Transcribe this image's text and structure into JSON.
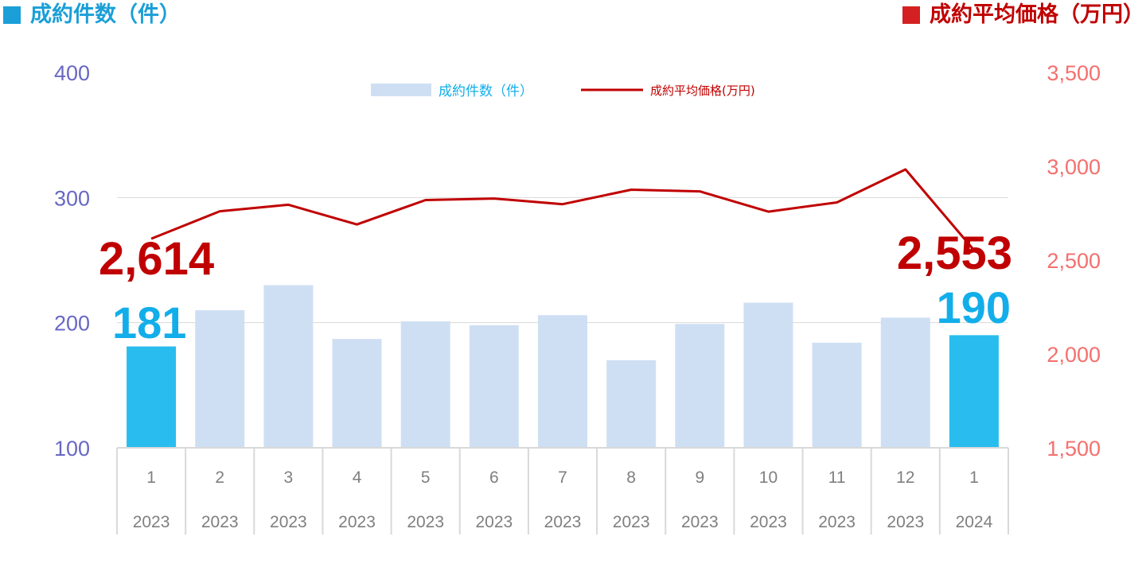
{
  "header": {
    "left_title": "成約件数（件）",
    "right_title": "成約平均価格（万円）"
  },
  "colors": {
    "bar": "#cfdff3",
    "bar_highlight": "#29bdef",
    "line": "#c00000",
    "left_axis_text": "#6868c4",
    "right_axis_text": "#f4706e",
    "left_header": "#1a9fd8",
    "left_header_square": "#1a9fd8",
    "right_header": "#c00000",
    "right_header_square": "#d42020",
    "count_label": "#12aeea",
    "price_label": "#c00000",
    "grid": "#d9d9d9"
  },
  "chart_data": {
    "type": "bar",
    "categories": [
      [
        "1",
        "2023"
      ],
      [
        "2",
        "2023"
      ],
      [
        "3",
        "2023"
      ],
      [
        "4",
        "2023"
      ],
      [
        "5",
        "2023"
      ],
      [
        "6",
        "2023"
      ],
      [
        "7",
        "2023"
      ],
      [
        "8",
        "2023"
      ],
      [
        "9",
        "2023"
      ],
      [
        "10",
        "2023"
      ],
      [
        "11",
        "2023"
      ],
      [
        "12",
        "2023"
      ],
      [
        "1",
        "2024"
      ]
    ],
    "series": [
      {
        "name": "成約件数（件）",
        "type": "bar",
        "axis": "left",
        "values": [
          181,
          210,
          230,
          187,
          201,
          198,
          206,
          170,
          199,
          216,
          184,
          204,
          190
        ],
        "highlight": [
          0,
          12
        ]
      },
      {
        "name": "成約平均価格(万円)",
        "type": "line",
        "axis": "right",
        "values": [
          2614,
          2760,
          2795,
          2690,
          2820,
          2828,
          2798,
          2875,
          2866,
          2758,
          2807,
          2983,
          2553
        ]
      }
    ],
    "left_axis": {
      "ticks": [
        "400",
        "300",
        "200",
        "100"
      ],
      "values": [
        400,
        300,
        200,
        100
      ],
      "ylim": [
        100,
        400
      ]
    },
    "right_axis": {
      "ticks": [
        "3,500",
        "3,000",
        "2,500",
        "2,000",
        "1,500"
      ],
      "values": [
        3500,
        3000,
        2500,
        2000,
        1500
      ],
      "ylim": [
        1500,
        3500
      ]
    },
    "legend_position": "top-center",
    "grid": true,
    "annotations": {
      "first_count": "181",
      "last_count": "190",
      "first_price": "2,614",
      "last_price": "2,553"
    }
  }
}
